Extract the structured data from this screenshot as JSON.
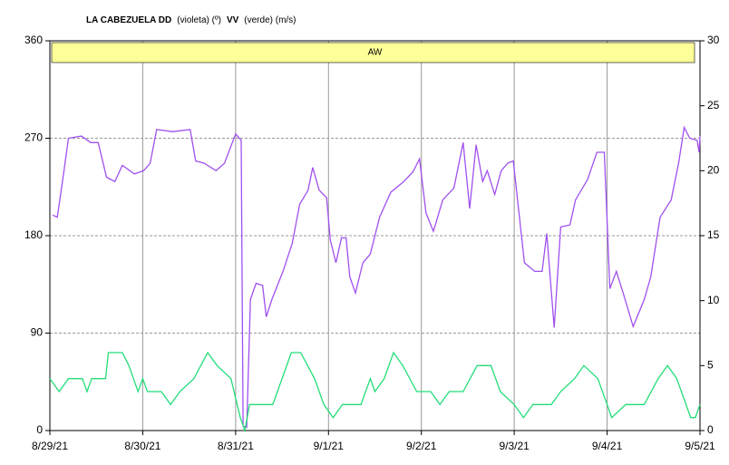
{
  "chart_data": {
    "type": "line",
    "title_parts": [
      {
        "text": "LA CABEZUELA DD",
        "bold": true
      },
      {
        "text": "(violeta) (º)",
        "bold": false
      },
      {
        "text": "VV",
        "bold": true
      },
      {
        "text": "(verde) (m/s)",
        "bold": false
      }
    ],
    "annotation": "AW",
    "annotation_color": "#ffff99",
    "grid": true,
    "xlim": [
      0,
      7
    ],
    "xticks": [
      {
        "value": 0,
        "label": "8/29/21"
      },
      {
        "value": 1,
        "label": "8/30/21"
      },
      {
        "value": 2,
        "label": "8/31/21"
      },
      {
        "value": 3,
        "label": "9/1/21"
      },
      {
        "value": 4,
        "label": "9/2/21"
      },
      {
        "value": 5,
        "label": "9/3/21"
      },
      {
        "value": 6,
        "label": "9/4/21"
      },
      {
        "value": 7,
        "label": "9/5/21"
      }
    ],
    "ylim": [
      0,
      360
    ],
    "yticks": [
      0,
      90,
      180,
      270,
      360
    ],
    "y2lim": [
      0,
      30
    ],
    "y2ticks": [
      0,
      5,
      10,
      15,
      20,
      25,
      30
    ],
    "series": [
      {
        "name": "DD",
        "color": "#a050f0",
        "axis": "y",
        "x": [
          0.03,
          0.08,
          0.15,
          0.2,
          0.34,
          0.44,
          0.52,
          0.61,
          0.7,
          0.78,
          0.91,
          1.01,
          1.08,
          1.15,
          1.32,
          1.51,
          1.57,
          1.66,
          1.79,
          1.88,
          2.0,
          2.06,
          2.08,
          2.12,
          2.16,
          2.22,
          2.29,
          2.33,
          2.39,
          2.51,
          2.61,
          2.69,
          2.78,
          2.83,
          2.9,
          2.98,
          3.02,
          3.08,
          3.14,
          3.19,
          3.23,
          3.29,
          3.37,
          3.45,
          3.55,
          3.67,
          3.81,
          3.91,
          3.98,
          4.05,
          4.13,
          4.23,
          4.35,
          4.45,
          4.52,
          4.59,
          4.66,
          4.71,
          4.79,
          4.86,
          4.93,
          4.99,
          5.11,
          5.22,
          5.3,
          5.35,
          5.43,
          5.5,
          5.6,
          5.66,
          5.79,
          5.89,
          5.97,
          6.03,
          6.1,
          6.18,
          6.28,
          6.4,
          6.47,
          6.57,
          6.69,
          6.77,
          6.83,
          6.89,
          6.97,
          6.99,
          7.0
        ],
        "values": [
          199,
          197,
          239,
          270,
          272,
          266,
          266,
          234,
          230,
          245,
          237,
          240,
          247,
          278,
          276,
          278,
          249,
          247,
          240,
          247,
          274,
          268,
          4,
          3,
          121,
          136,
          134,
          105,
          121,
          147,
          173,
          209,
          222,
          243,
          222,
          215,
          176,
          155,
          178,
          178,
          142,
          127,
          155,
          163,
          197,
          220,
          230,
          239,
          251,
          201,
          184,
          213,
          224,
          266,
          205,
          264,
          230,
          240,
          218,
          240,
          247,
          249,
          155,
          147,
          147,
          182,
          95,
          188,
          190,
          213,
          232,
          257,
          257,
          131,
          147,
          125,
          96,
          121,
          142,
          197,
          213,
          247,
          280,
          270,
          268,
          257,
          272
        ]
      },
      {
        "name": "VV",
        "color": "#22dd77",
        "axis": "y2",
        "x": [
          0,
          0.1,
          0.2,
          0.35,
          0.4,
          0.45,
          0.6,
          0.63,
          0.78,
          0.85,
          0.9,
          0.95,
          1.0,
          1.05,
          1.1,
          1.2,
          1.3,
          1.4,
          1.55,
          1.7,
          1.8,
          1.95,
          2.05,
          2.1,
          2.15,
          2.4,
          2.5,
          2.6,
          2.7,
          2.85,
          2.95,
          3.05,
          3.15,
          3.35,
          3.45,
          3.5,
          3.6,
          3.7,
          3.8,
          3.95,
          4.1,
          4.2,
          4.3,
          4.45,
          4.6,
          4.75,
          4.85,
          5.0,
          5.1,
          5.2,
          5.4,
          5.5,
          5.65,
          5.75,
          5.9,
          6.0,
          6.05,
          6.2,
          6.4,
          6.55,
          6.65,
          6.75,
          6.85,
          6.9,
          6.95,
          7.0
        ],
        "values": [
          4,
          3,
          4,
          4,
          3,
          4,
          4,
          6,
          6,
          5,
          4,
          3,
          4,
          3,
          3,
          3,
          2,
          3,
          4,
          6,
          5,
          4,
          1,
          0,
          2,
          2,
          4,
          6,
          6,
          4,
          2,
          1,
          2,
          2,
          4,
          3,
          4,
          6,
          5,
          3,
          3,
          2,
          3,
          3,
          5,
          5,
          3,
          2,
          1,
          2,
          2,
          3,
          4,
          5,
          4,
          2,
          1,
          2,
          2,
          4,
          5,
          4,
          2,
          1,
          1,
          2
        ]
      }
    ]
  }
}
